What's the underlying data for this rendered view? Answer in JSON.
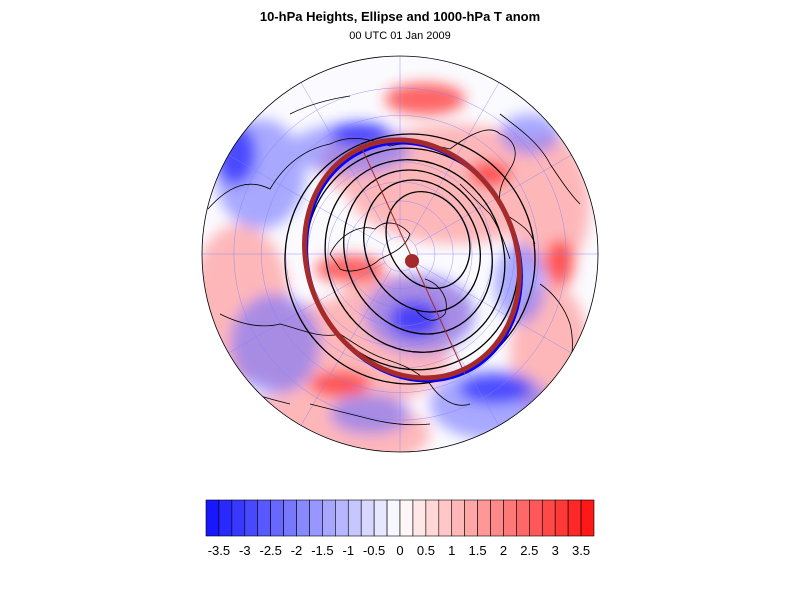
{
  "title": "10-hPa Heights, Ellipse and 1000-hPa T anom",
  "subtitle": "00 UTC 01 Jan 2009",
  "projection": "north-polar-stereographic",
  "colors": {
    "negative_max": "#1010ff",
    "positive_max": "#ff1010",
    "ellipse": "#a52a2a",
    "contours": "#000000",
    "coastlines": "#000000",
    "graticule": "#7f7fff",
    "map_background": "#fbfbff"
  },
  "colorbar": {
    "labels": [
      "-3.5",
      "-3",
      "-2.5",
      "-2",
      "-1.5",
      "-1",
      "-0.5",
      "0",
      "0.5",
      "1",
      "1.5",
      "2",
      "2.5",
      "3",
      "3.5"
    ],
    "levels": [
      -3.5,
      -3.25,
      -3,
      -2.75,
      -2.5,
      -2.25,
      -2,
      -1.75,
      -1.5,
      -1.25,
      -1,
      -0.75,
      -0.5,
      -0.25,
      0,
      0.25,
      0.5,
      0.75,
      1,
      1.25,
      1.5,
      1.75,
      2,
      2.25,
      2.5,
      2.75,
      3,
      3.25,
      3.5
    ],
    "range": [
      -3.75,
      3.75
    ]
  },
  "map_features": {
    "temperature_anomaly": "shaded",
    "height_contours": 6,
    "ellipse": "thick brown ellipse with minor-axis line and center marker",
    "graticule": "lat/lon grid"
  }
}
